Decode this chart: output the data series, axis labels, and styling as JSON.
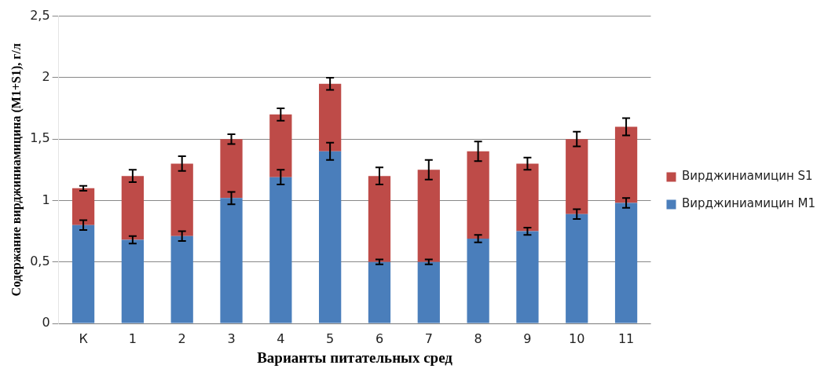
{
  "chart_data": {
    "type": "bar",
    "stacked": true,
    "xlabel": "Варианты питательных сред",
    "ylabel": "Содержание вирджиниамицина (M1+S1), г/л",
    "categories": [
      "К",
      "1",
      "2",
      "3",
      "4",
      "5",
      "6",
      "7",
      "8",
      "9",
      "10",
      "11"
    ],
    "series": [
      {
        "name": "Вирджиниамицин М1",
        "color": "#4a7ebb",
        "values": [
          0.8,
          0.68,
          0.71,
          1.02,
          1.19,
          1.4,
          0.5,
          0.5,
          0.69,
          0.75,
          0.89,
          0.98
        ],
        "errors": [
          0.04,
          0.03,
          0.04,
          0.05,
          0.06,
          0.07,
          0.02,
          0.02,
          0.03,
          0.03,
          0.04,
          0.04
        ]
      },
      {
        "name": "Вирджиниамицин S1",
        "color": "#be4b48",
        "values": [
          0.3,
          0.52,
          0.59,
          0.48,
          0.51,
          0.55,
          0.7,
          0.75,
          0.71,
          0.55,
          0.61,
          0.62
        ],
        "errors": [
          0.02,
          0.05,
          0.06,
          0.04,
          0.05,
          0.05,
          0.07,
          0.08,
          0.08,
          0.05,
          0.06,
          0.07
        ]
      }
    ],
    "ylim": [
      0,
      2.5
    ],
    "yticks": [
      {
        "value": 0,
        "label": "0"
      },
      {
        "value": 0.5,
        "label": "0,5"
      },
      {
        "value": 1,
        "label": "1"
      },
      {
        "value": 1.5,
        "label": "1,5"
      },
      {
        "value": 2,
        "label": "2"
      },
      {
        "value": 2.5,
        "label": "2,5"
      }
    ],
    "grid": "y",
    "legend": "right"
  }
}
